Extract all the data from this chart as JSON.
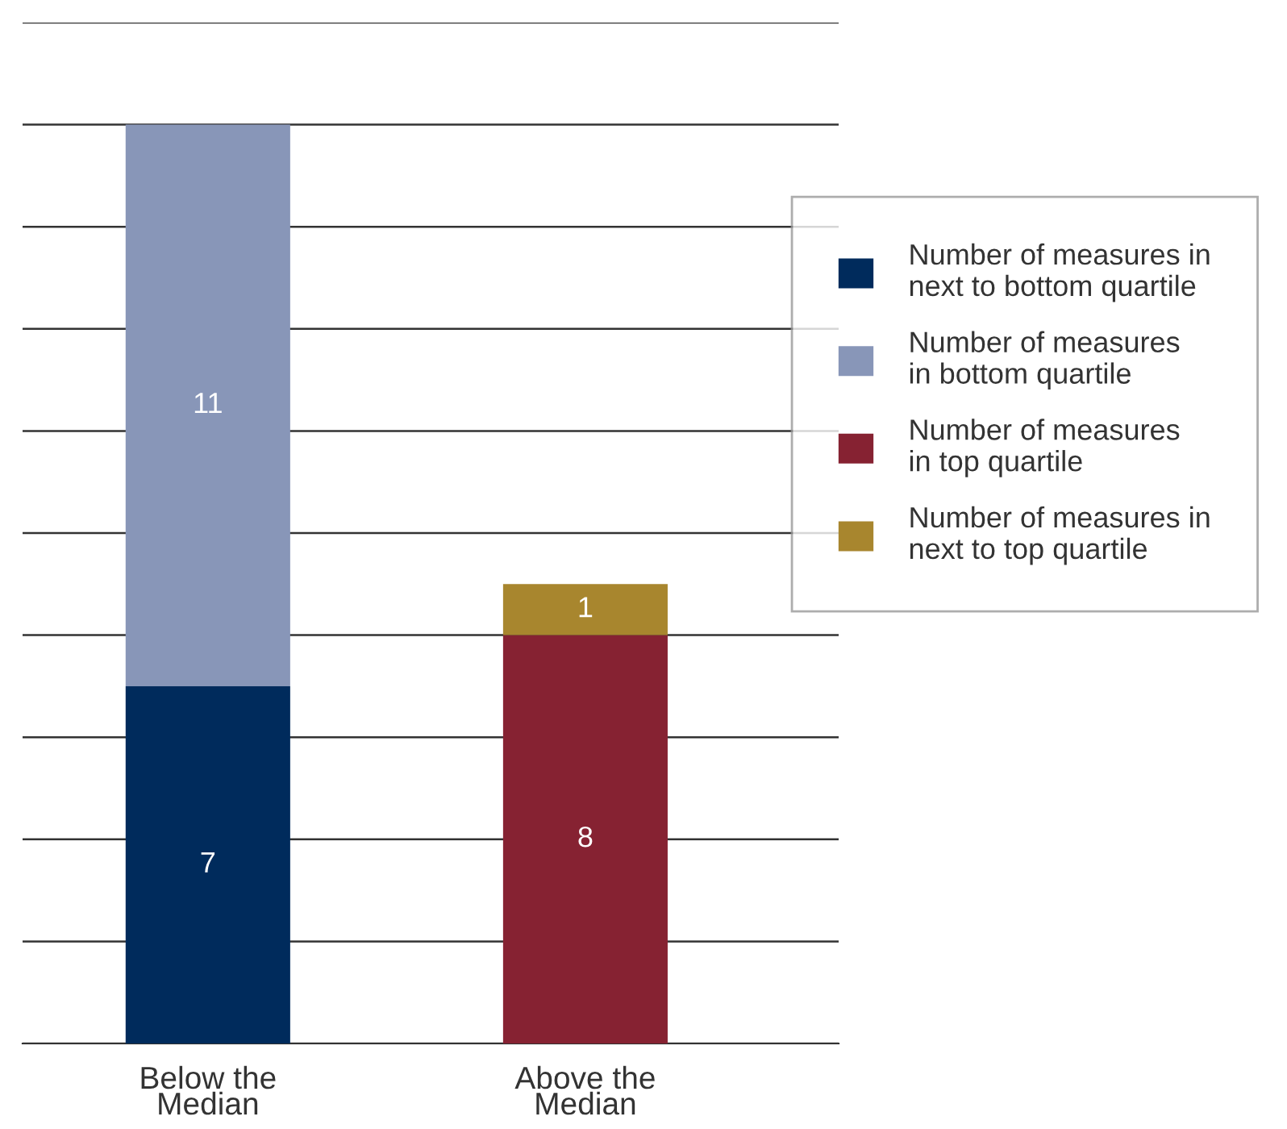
{
  "chart_data": {
    "type": "bar",
    "stacked": true,
    "categories": [
      "Below the Median",
      "Above the Median"
    ],
    "series": [
      {
        "name": "Number of measures in next to bottom quartile",
        "color": "#002b5c",
        "values": [
          7,
          null
        ]
      },
      {
        "name": "Number of measures in bottom quartile",
        "color": "#8896b8",
        "values": [
          11,
          null
        ]
      },
      {
        "name": "Number of measures in top quartile",
        "color": "#862232",
        "values": [
          null,
          8
        ]
      },
      {
        "name": "Number of measures in next to top quartile",
        "color": "#a8862e",
        "values": [
          null,
          1
        ]
      }
    ],
    "ylim": [
      0,
      20
    ],
    "yticks": [
      {
        "value": 0,
        "label": null
      },
      {
        "value": 2,
        "label": null
      },
      {
        "value": 4,
        "label": null
      },
      {
        "value": 6,
        "label": null
      },
      {
        "value": 8,
        "label": null
      },
      {
        "value": 10,
        "label": null
      },
      {
        "value": 12,
        "label": null
      },
      {
        "value": 14,
        "label": null
      },
      {
        "value": 16,
        "label": null
      },
      {
        "value": 18,
        "label": null
      },
      {
        "value": 20,
        "label": null
      }
    ],
    "grid": "y",
    "legend": "right",
    "tick_labels": "x",
    "data_labels": true
  }
}
